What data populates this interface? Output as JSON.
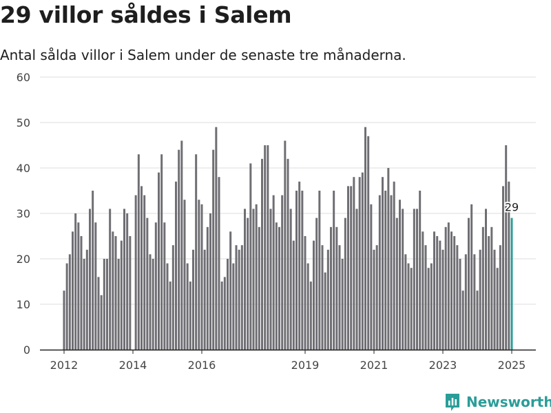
{
  "page": {
    "title": "29 villor såldes i Salem",
    "subtitle": "Antal sålda villor i Salem under de senaste tre månaderna."
  },
  "brand": {
    "name": "Newsworthy",
    "icon": "newsworthy-logo-icon",
    "color": "#2a9d98"
  },
  "chart_data": {
    "type": "bar",
    "ylim": [
      0,
      60
    ],
    "yticks": [
      0,
      10,
      20,
      30,
      40,
      50,
      60
    ],
    "xticks": [
      {
        "label": "2012",
        "x": "2012-01"
      },
      {
        "label": "2014",
        "x": "2014-01"
      },
      {
        "label": "2016",
        "x": "2016-01"
      },
      {
        "label": "2019",
        "x": "2019-01"
      },
      {
        "label": "2021",
        "x": "2021-01"
      },
      {
        "label": "2023",
        "x": "2023-01"
      },
      {
        "label": "2025",
        "x": "2025-01"
      }
    ],
    "grid": true,
    "bar_color": "#6e6e73",
    "highlight_color": "#2a9d98",
    "highlight_label": "29",
    "x": [
      "2012-01",
      "2012-02",
      "2012-03",
      "2012-04",
      "2012-05",
      "2012-06",
      "2012-07",
      "2012-08",
      "2012-09",
      "2012-10",
      "2012-11",
      "2012-12",
      "2013-01",
      "2013-02",
      "2013-03",
      "2013-04",
      "2013-05",
      "2013-06",
      "2013-07",
      "2013-08",
      "2013-09",
      "2013-10",
      "2013-11",
      "2013-12",
      "2014-01",
      "2014-02",
      "2014-03",
      "2014-04",
      "2014-05",
      "2014-06",
      "2014-07",
      "2014-08",
      "2014-09",
      "2014-10",
      "2014-11",
      "2014-12",
      "2015-01",
      "2015-02",
      "2015-03",
      "2015-04",
      "2015-05",
      "2015-06",
      "2015-07",
      "2015-08",
      "2015-09",
      "2015-10",
      "2015-11",
      "2015-12",
      "2016-01",
      "2016-02",
      "2016-03",
      "2016-04",
      "2016-05",
      "2016-06",
      "2016-07",
      "2016-08",
      "2016-09",
      "2016-10",
      "2016-11",
      "2016-12",
      "2017-01",
      "2017-02",
      "2017-03",
      "2017-04",
      "2017-05",
      "2017-06",
      "2017-07",
      "2017-08",
      "2017-09",
      "2017-10",
      "2017-11",
      "2017-12",
      "2018-01",
      "2018-02",
      "2018-03",
      "2018-04",
      "2018-05",
      "2018-06",
      "2018-07",
      "2018-08",
      "2018-09",
      "2018-10",
      "2018-11",
      "2018-12",
      "2019-01",
      "2019-02",
      "2019-03",
      "2019-04",
      "2019-05",
      "2019-06",
      "2019-07",
      "2019-08",
      "2019-09",
      "2019-10",
      "2019-11",
      "2019-12",
      "2020-01",
      "2020-02",
      "2020-03",
      "2020-04",
      "2020-05",
      "2020-06",
      "2020-07",
      "2020-08",
      "2020-09",
      "2020-10",
      "2020-11",
      "2020-12",
      "2021-01",
      "2021-02",
      "2021-03",
      "2021-04",
      "2021-05",
      "2021-06",
      "2021-07",
      "2021-08",
      "2021-09",
      "2021-10",
      "2021-11",
      "2021-12",
      "2022-01",
      "2022-02",
      "2022-03",
      "2022-04",
      "2022-05",
      "2022-06",
      "2022-07",
      "2022-08",
      "2022-09",
      "2022-10",
      "2022-11",
      "2022-12",
      "2023-01",
      "2023-02",
      "2023-03",
      "2023-04",
      "2023-05",
      "2023-06",
      "2023-07",
      "2023-08",
      "2023-09",
      "2023-10",
      "2023-11",
      "2023-12",
      "2024-01",
      "2024-02",
      "2024-03",
      "2024-04",
      "2024-05",
      "2024-06",
      "2024-07",
      "2024-08",
      "2024-09",
      "2024-10",
      "2024-11",
      "2024-12",
      "2025-01"
    ],
    "values": [
      13,
      19,
      21,
      26,
      30,
      28,
      25,
      20,
      22,
      31,
      35,
      28,
      16,
      12,
      20,
      20,
      31,
      26,
      25,
      20,
      24,
      31,
      30,
      25,
      0,
      34,
      43,
      36,
      34,
      29,
      21,
      20,
      28,
      39,
      43,
      28,
      19,
      15,
      23,
      37,
      44,
      46,
      33,
      19,
      15,
      22,
      43,
      33,
      32,
      22,
      27,
      30,
      44,
      49,
      38,
      15,
      16,
      20,
      26,
      19,
      23,
      22,
      23,
      31,
      29,
      41,
      31,
      32,
      27,
      42,
      45,
      45,
      31,
      34,
      28,
      27,
      34,
      46,
      42,
      31,
      24,
      35,
      37,
      35,
      25,
      19,
      15,
      24,
      29,
      35,
      23,
      17,
      22,
      27,
      35,
      27,
      23,
      20,
      29,
      36,
      36,
      38,
      31,
      38,
      39,
      49,
      47,
      32,
      22,
      23,
      34,
      38,
      35,
      40,
      34,
      37,
      29,
      33,
      31,
      21,
      19,
      18,
      31,
      31,
      35,
      26,
      23,
      18,
      19,
      26,
      25,
      24,
      22,
      27,
      28,
      26,
      25,
      23,
      20,
      13,
      21,
      29,
      32,
      21,
      13,
      22,
      27,
      31,
      25,
      27,
      22,
      18,
      23,
      36,
      45,
      37,
      29
    ]
  }
}
